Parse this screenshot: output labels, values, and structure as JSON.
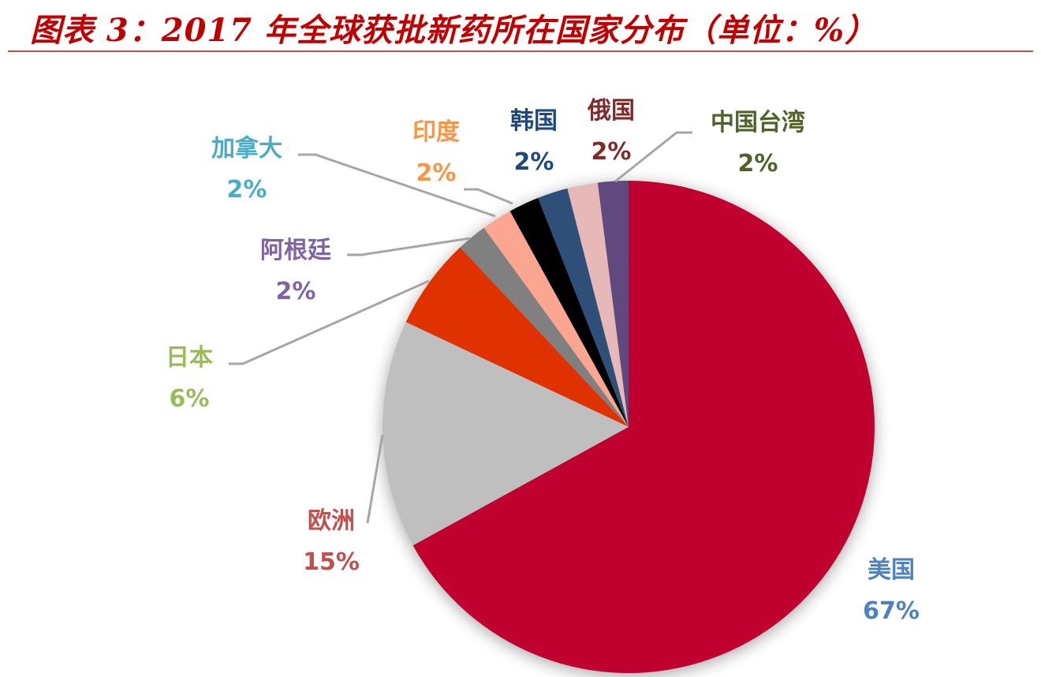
{
  "title": "图表 3：2017 年全球获批新药所在国家分布（单位：%）",
  "chart_data": {
    "type": "pie",
    "title": "2017 年全球获批新药所在国家分布（单位：%）",
    "unit": "%",
    "start_angle": "12 o'clock, clockwise",
    "categories": [
      "美国",
      "欧洲",
      "日本",
      "阿根廷",
      "加拿大",
      "印度",
      "韩国",
      "俄国",
      "中国台湾"
    ],
    "values": [
      67,
      15,
      6,
      2,
      2,
      2,
      2,
      2,
      2
    ],
    "labels": [
      "67%",
      "15%",
      "6%",
      "2%",
      "2%",
      "2%",
      "2%",
      "2%",
      "2%"
    ],
    "slice_colors": [
      "#c0002f",
      "#bfbfbf",
      "#e03300",
      "#808080",
      "#fca590",
      "#000000",
      "#2e4f78",
      "#e6b8b7",
      "#604a7b"
    ],
    "label_colors": [
      "#4f81bd",
      "#c0504d",
      "#9bbb59",
      "#8064a2",
      "#4bacc6",
      "#f79646",
      "#1f497d",
      "#7f2a2a",
      "#4f6228"
    ],
    "legend": "none (data labels with leader lines)"
  }
}
